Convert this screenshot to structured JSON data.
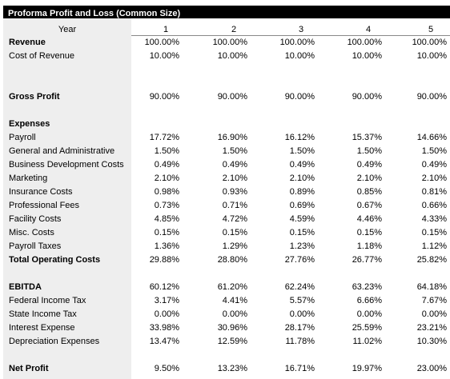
{
  "title": "Proforma Profit and Loss (Common Size)",
  "header": {
    "label": "Year",
    "years": [
      "1",
      "2",
      "3",
      "4",
      "5"
    ]
  },
  "rows": [
    {
      "label": "Revenue",
      "bold": true,
      "values": [
        "100.00%",
        "100.00%",
        "100.00%",
        "100.00%",
        "100.00%"
      ]
    },
    {
      "label": "Cost of Revenue",
      "bold": false,
      "values": [
        "10.00%",
        "10.00%",
        "10.00%",
        "10.00%",
        "10.00%"
      ]
    },
    {
      "label": "Gross Profit",
      "bold": true,
      "values": [
        "90.00%",
        "90.00%",
        "90.00%",
        "90.00%",
        "90.00%"
      ]
    },
    {
      "label": "Expenses",
      "bold": true,
      "values": [
        "",
        "",
        "",
        "",
        ""
      ]
    },
    {
      "label": "Payroll",
      "bold": false,
      "values": [
        "17.72%",
        "16.90%",
        "16.12%",
        "15.37%",
        "14.66%"
      ]
    },
    {
      "label": "General and Administrative",
      "bold": false,
      "values": [
        "1.50%",
        "1.50%",
        "1.50%",
        "1.50%",
        "1.50%"
      ]
    },
    {
      "label": "Business Development Costs",
      "bold": false,
      "values": [
        "0.49%",
        "0.49%",
        "0.49%",
        "0.49%",
        "0.49%"
      ]
    },
    {
      "label": "Marketing",
      "bold": false,
      "values": [
        "2.10%",
        "2.10%",
        "2.10%",
        "2.10%",
        "2.10%"
      ]
    },
    {
      "label": "Insurance Costs",
      "bold": false,
      "values": [
        "0.98%",
        "0.93%",
        "0.89%",
        "0.85%",
        "0.81%"
      ]
    },
    {
      "label": "Professional Fees",
      "bold": false,
      "values": [
        "0.73%",
        "0.71%",
        "0.69%",
        "0.67%",
        "0.66%"
      ]
    },
    {
      "label": "Facility Costs",
      "bold": false,
      "values": [
        "4.85%",
        "4.72%",
        "4.59%",
        "4.46%",
        "4.33%"
      ]
    },
    {
      "label": "Misc. Costs",
      "bold": false,
      "values": [
        "0.15%",
        "0.15%",
        "0.15%",
        "0.15%",
        "0.15%"
      ]
    },
    {
      "label": "Payroll Taxes",
      "bold": false,
      "values": [
        "1.36%",
        "1.29%",
        "1.23%",
        "1.18%",
        "1.12%"
      ]
    },
    {
      "label": "Total Operating Costs",
      "bold": true,
      "values": [
        "29.88%",
        "28.80%",
        "27.76%",
        "26.77%",
        "25.82%"
      ]
    },
    {
      "label": "EBITDA",
      "bold": true,
      "values": [
        "60.12%",
        "61.20%",
        "62.24%",
        "63.23%",
        "64.18%"
      ]
    },
    {
      "label": "Federal Income Tax",
      "bold": false,
      "values": [
        "3.17%",
        "4.41%",
        "5.57%",
        "6.66%",
        "7.67%"
      ]
    },
    {
      "label": "State Income Tax",
      "bold": false,
      "values": [
        "0.00%",
        "0.00%",
        "0.00%",
        "0.00%",
        "0.00%"
      ]
    },
    {
      "label": "Interest Expense",
      "bold": false,
      "values": [
        "33.98%",
        "30.96%",
        "28.17%",
        "25.59%",
        "23.21%"
      ]
    },
    {
      "label": "Depreciation Expenses",
      "bold": false,
      "values": [
        "13.47%",
        "12.59%",
        "11.78%",
        "11.02%",
        "10.30%"
      ]
    },
    {
      "label": "Net Profit",
      "bold": true,
      "values": [
        "9.50%",
        "13.23%",
        "16.71%",
        "19.97%",
        "23.00%"
      ]
    }
  ]
}
